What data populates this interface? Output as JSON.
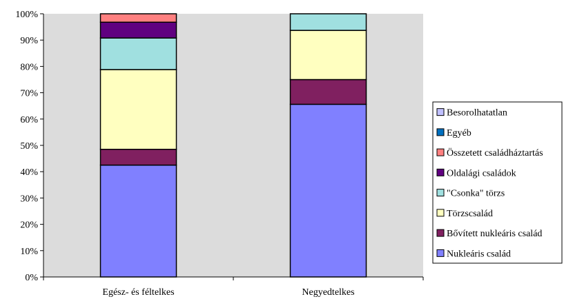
{
  "chart_data": {
    "type": "bar",
    "stacked": true,
    "percent_axis": true,
    "categories": [
      "Egész- és féltelkes",
      "Negyedtelkes"
    ],
    "series": [
      {
        "name": "Nukleáris család",
        "color": "#8080ff",
        "values": [
          42.5,
          65.6
        ]
      },
      {
        "name": "Bővített nukleáris család",
        "color": "#802060",
        "values": [
          6.0,
          9.4
        ]
      },
      {
        "name": "Törzscsalád",
        "color": "#ffffc0",
        "values": [
          30.3,
          18.7
        ]
      },
      {
        "name": "\"Csonka\" törzs",
        "color": "#a0e0e0",
        "values": [
          12.0,
          6.3
        ]
      },
      {
        "name": "Oldalági családok",
        "color": "#600080",
        "values": [
          6.0,
          0
        ]
      },
      {
        "name": "Összetett családháztartás",
        "color": "#ff8080",
        "values": [
          3.2,
          0
        ]
      },
      {
        "name": "Egyéb",
        "color": "#0070c0",
        "values": [
          0,
          0
        ]
      },
      {
        "name": "Besorolhatatlan",
        "color": "#c0c0ff",
        "values": [
          0,
          0
        ]
      }
    ],
    "ylim": [
      0,
      100
    ],
    "yticks": [
      "0%",
      "10%",
      "20%",
      "30%",
      "40%",
      "50%",
      "60%",
      "70%",
      "80%",
      "90%",
      "100%"
    ],
    "plot_background": "#dcdcdc",
    "legend_position": "right",
    "title": "",
    "xlabel": "",
    "ylabel": ""
  }
}
